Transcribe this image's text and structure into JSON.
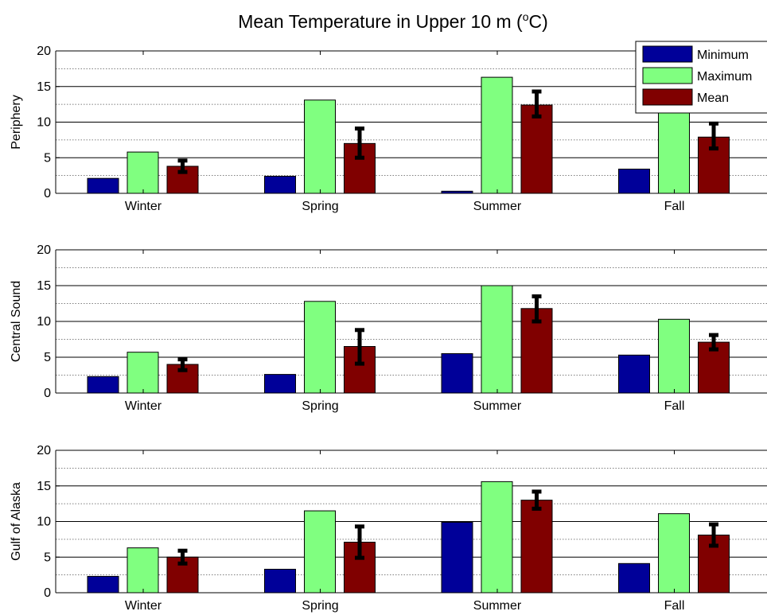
{
  "figure": {
    "title": "Mean Temperature in Upper 10 m (",
    "title_sup": "o",
    "title_end": "C)"
  },
  "colors": {
    "minimum": "#000099",
    "maximum": "#80ff80",
    "mean": "#800000",
    "errorbar": "#000000"
  },
  "legend": {
    "placement": "top-right",
    "entries": [
      "Minimum",
      "Maximum",
      "Mean"
    ]
  },
  "chart_data": [
    {
      "type": "bar",
      "ylabel": "Periphery",
      "categories": [
        "Winter",
        "Spring",
        "Summer",
        "Fall"
      ],
      "ylim": [
        0,
        20
      ],
      "yticks": [
        0,
        5,
        10,
        15,
        20
      ],
      "grid": true,
      "series": [
        {
          "name": "Minimum",
          "values": [
            2.1,
            2.4,
            0.3,
            3.4
          ]
        },
        {
          "name": "Maximum",
          "values": [
            5.8,
            13.1,
            16.3,
            11.8
          ]
        },
        {
          "name": "Mean",
          "values": [
            3.8,
            7.0,
            12.4,
            7.9
          ],
          "error_low": [
            3.0,
            5.0,
            10.8,
            6.3
          ],
          "error_high": [
            4.6,
            9.1,
            14.3,
            9.8
          ]
        }
      ]
    },
    {
      "type": "bar",
      "ylabel": "Central Sound",
      "categories": [
        "Winter",
        "Spring",
        "Summer",
        "Fall"
      ],
      "ylim": [
        0,
        20
      ],
      "yticks": [
        0,
        5,
        10,
        15,
        20
      ],
      "grid": true,
      "series": [
        {
          "name": "Minimum",
          "values": [
            2.3,
            2.6,
            5.5,
            5.3
          ]
        },
        {
          "name": "Maximum",
          "values": [
            5.7,
            12.8,
            15.0,
            10.3
          ]
        },
        {
          "name": "Mean",
          "values": [
            4.0,
            6.5,
            11.8,
            7.1
          ],
          "error_low": [
            3.2,
            4.1,
            10.0,
            6.1
          ],
          "error_high": [
            4.7,
            8.8,
            13.5,
            8.1
          ]
        }
      ]
    },
    {
      "type": "bar",
      "ylabel": "Gulf of Alaska",
      "categories": [
        "Winter",
        "Spring",
        "Summer",
        "Fall"
      ],
      "ylim": [
        0,
        20
      ],
      "yticks": [
        0,
        5,
        10,
        15,
        20
      ],
      "grid": true,
      "series": [
        {
          "name": "Minimum",
          "values": [
            2.3,
            3.3,
            9.9,
            4.1
          ]
        },
        {
          "name": "Maximum",
          "values": [
            6.3,
            11.5,
            15.6,
            11.1
          ]
        },
        {
          "name": "Mean",
          "values": [
            5.0,
            7.1,
            13.0,
            8.1
          ],
          "error_low": [
            4.1,
            4.9,
            11.8,
            6.6
          ],
          "error_high": [
            5.9,
            9.3,
            14.2,
            9.6
          ]
        }
      ]
    }
  ]
}
